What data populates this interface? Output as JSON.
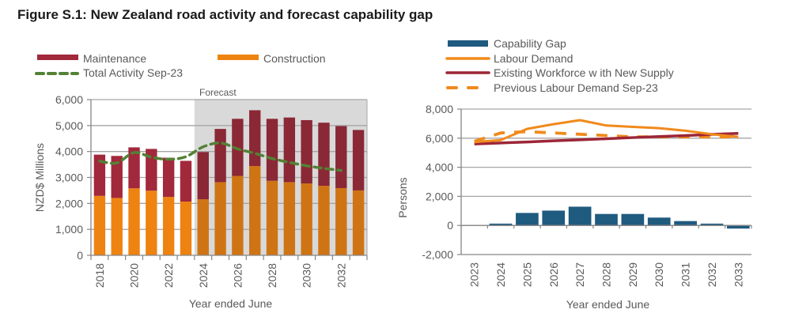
{
  "figure_title": "Figure S.1: New Zealand road activity and forecast capability gap",
  "colors": {
    "maintenance": "#A2283B",
    "construction": "#EE8311",
    "total_activity": "#538135",
    "capability_gap": "#1F5A7F",
    "labour_demand": "#F08A1C",
    "existing_workforce": "#9C2637",
    "previous_demand": "#F08A1C",
    "forecast_shade": "#BFBFBF",
    "grid": "#A6A6A6",
    "text": "#595959"
  },
  "chart_data": [
    {
      "type": "bar",
      "stacked": true,
      "title": "",
      "xlabel": "Year ended June",
      "ylabel": "NZD$ Millions",
      "ylim": [
        0,
        6000
      ],
      "yticks": [
        0,
        1000,
        2000,
        3000,
        4000,
        5000,
        6000
      ],
      "ytick_labels": [
        "0",
        "1,000",
        "2,000",
        "3,000",
        "4,000",
        "5,000",
        "6,000"
      ],
      "grid": true,
      "legend_position": "top-left",
      "categories": [
        "2018",
        "2019",
        "2020",
        "2021",
        "2022",
        "2023",
        "2024",
        "2025",
        "2026",
        "2027",
        "2028",
        "2029",
        "2030",
        "2031",
        "2032",
        "2033"
      ],
      "xtick_labels": [
        "2018",
        "",
        "2020",
        "",
        "2022",
        "",
        "2024",
        "",
        "2026",
        "",
        "2028",
        "",
        "2030",
        "",
        "2032",
        ""
      ],
      "forecast_start": "2024",
      "annotations": [
        {
          "text": "Forecast",
          "region": "2024-2033"
        }
      ],
      "series": [
        {
          "name": "Construction",
          "kind": "bar",
          "values": [
            2290,
            2210,
            2580,
            2490,
            2250,
            2070,
            2160,
            2820,
            3060,
            3440,
            2870,
            2820,
            2770,
            2680,
            2590,
            2500
          ]
        },
        {
          "name": "Maintenance",
          "kind": "bar",
          "values": [
            1590,
            1620,
            1580,
            1610,
            1510,
            1570,
            1820,
            2050,
            2200,
            2150,
            2390,
            2490,
            2440,
            2430,
            2390,
            2330
          ]
        },
        {
          "name": "Total Activity Sep-23",
          "kind": "dashed-line",
          "values": [
            3630,
            3560,
            3960,
            3780,
            3700,
            3800,
            4180,
            4330,
            4100,
            3930,
            3730,
            3580,
            3450,
            3350,
            3270,
            null
          ]
        }
      ],
      "legend": [
        "Maintenance",
        "Construction",
        "Total Activity Sep-23"
      ]
    },
    {
      "type": "bar",
      "title": "",
      "xlabel": "Year ended June",
      "ylabel": "Persons",
      "ylim": [
        -2000,
        8000
      ],
      "yticks": [
        -2000,
        0,
        2000,
        4000,
        6000,
        8000
      ],
      "ytick_labels": [
        "-2,000",
        "0",
        "2,000",
        "4,000",
        "6,000",
        "8,000"
      ],
      "grid": true,
      "legend_position": "top",
      "categories": [
        "2023",
        "2024",
        "2025",
        "2026",
        "2027",
        "2028",
        "2029",
        "2030",
        "2031",
        "2032",
        "2033"
      ],
      "series": [
        {
          "name": "Capability Gap",
          "kind": "bar",
          "values": [
            0,
            125,
            860,
            1020,
            1290,
            790,
            790,
            540,
            300,
            125,
            -215
          ]
        },
        {
          "name": "Labour Demand",
          "kind": "line",
          "values": [
            5730,
            5870,
            6640,
            6960,
            7240,
            6870,
            6780,
            6690,
            6510,
            6270,
            6090
          ]
        },
        {
          "name": "Existing Workforce with New Supply",
          "kind": "line",
          "values": [
            5600,
            5670,
            5740,
            5820,
            5890,
            5960,
            6040,
            6110,
            6180,
            6260,
            6330
          ]
        },
        {
          "name": "Previous Labour Demand Sep-23",
          "kind": "dashed-line",
          "values": [
            5780,
            6360,
            6450,
            6360,
            6270,
            6180,
            6090,
            6090,
            6090,
            6090,
            6090
          ]
        }
      ],
      "legend": [
        "Capability Gap",
        "Labour Demand",
        "Existing Workforce w ith New Supply",
        "Previous Labour Demand Sep-23"
      ]
    }
  ]
}
